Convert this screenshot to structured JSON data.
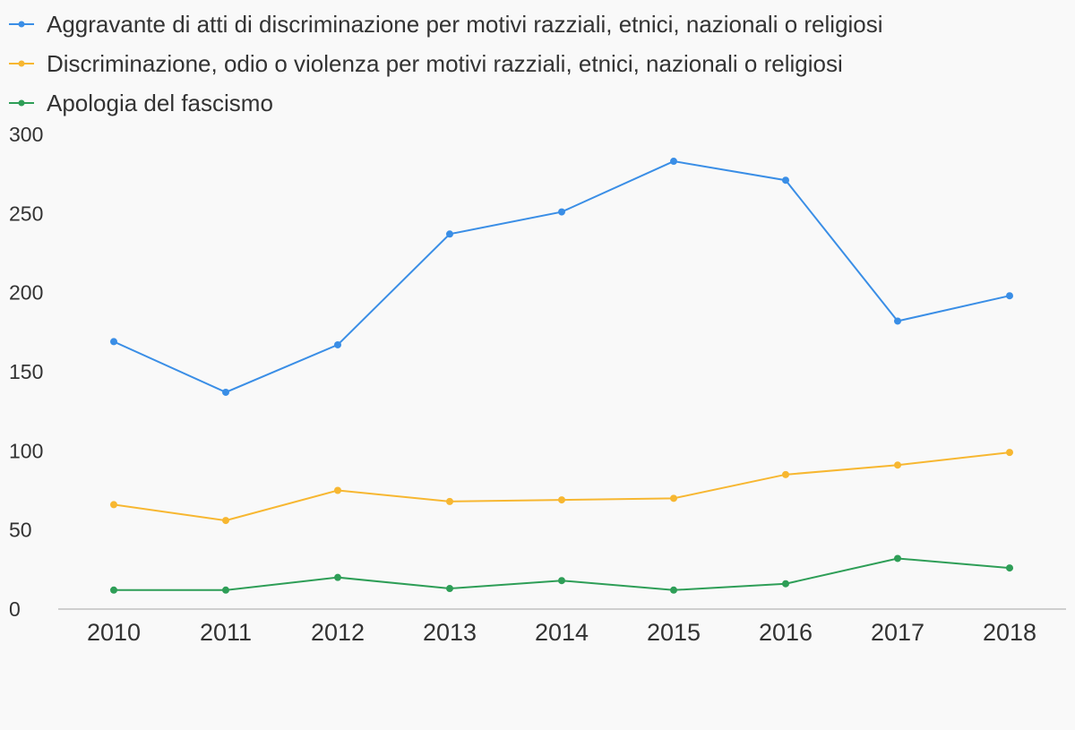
{
  "chart_data": {
    "type": "line",
    "title": "",
    "xlabel": "",
    "ylabel": "",
    "legend_position": "top-left",
    "grid": false,
    "categories": [
      "2010",
      "2011",
      "2012",
      "2013",
      "2014",
      "2015",
      "2016",
      "2017",
      "2018"
    ],
    "yticks": [
      "0",
      "50",
      "100",
      "150",
      "200",
      "250",
      "300"
    ],
    "ylim": [
      0,
      300
    ],
    "series": [
      {
        "name": "Aggravante di atti di discriminazione per motivi razziali, etnici, nazionali o religiosi",
        "color": "#3a8ee6",
        "values": [
          169,
          137,
          167,
          237,
          251,
          283,
          271,
          182,
          198
        ]
      },
      {
        "name": "Discriminazione, odio o violenza per motivi razziali, etnici, nazionali o religiosi",
        "color": "#f7b731",
        "values": [
          66,
          56,
          75,
          68,
          69,
          70,
          85,
          91,
          99
        ]
      },
      {
        "name": "Apologia del fascismo",
        "color": "#2e9e57",
        "values": [
          12,
          12,
          20,
          13,
          18,
          12,
          16,
          32,
          26
        ]
      }
    ]
  }
}
